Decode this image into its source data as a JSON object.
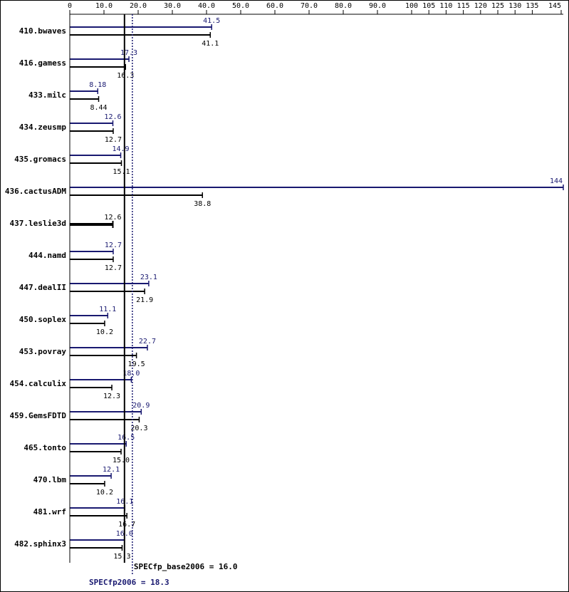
{
  "chart_data": {
    "type": "bar",
    "orientation": "horizontal",
    "x_ticks": [
      "0",
      "10.0",
      "20.0",
      "30.0",
      "40.0",
      "50.0",
      "60.0",
      "70.0",
      "80.0",
      "90.0",
      "100",
      "105",
      "110",
      "115",
      "120",
      "125",
      "130",
      "135",
      "145"
    ],
    "categories": [
      "410.bwaves",
      "416.gamess",
      "433.milc",
      "434.zeusmp",
      "435.gromacs",
      "436.cactusADM",
      "437.leslie3d",
      "444.namd",
      "447.dealII",
      "450.soplex",
      "453.povray",
      "454.calculix",
      "459.GemsFDTD",
      "465.tonto",
      "470.lbm",
      "481.wrf",
      "482.sphinx3"
    ],
    "series": [
      {
        "key": "peak",
        "color": "#191970",
        "values": [
          41.5,
          17.3,
          8.18,
          12.6,
          14.9,
          144,
          null,
          12.7,
          23.1,
          11.1,
          22.7,
          18.0,
          20.9,
          16.5,
          12.1,
          16.1,
          16.0
        ],
        "labels": [
          "41.5",
          "17.3",
          "8.18",
          "12.6",
          "14.9",
          "144",
          "",
          "12.7",
          "23.1",
          "11.1",
          "22.7",
          "18.0",
          "20.9",
          "16.5",
          "12.1",
          "16.1",
          "16.0"
        ]
      },
      {
        "key": "base",
        "color": "#000000",
        "values": [
          41.1,
          16.3,
          8.44,
          12.7,
          15.1,
          38.8,
          12.6,
          12.7,
          21.9,
          10.2,
          19.5,
          12.3,
          20.3,
          15.0,
          10.2,
          16.7,
          15.3
        ],
        "labels": [
          "41.1",
          "16.3",
          "8.44",
          "12.7",
          "15.1",
          "38.8",
          "12.6",
          "12.7",
          "21.9",
          "10.2",
          "19.5",
          "12.3",
          "20.3",
          "15.0",
          "10.2",
          "16.7",
          "15.3"
        ]
      }
    ],
    "summary": {
      "base_text": "SPECfp_base2006 = 16.0",
      "base_value": 16.0,
      "peak_text": "SPECfp2006 = 18.3",
      "peak_value": 18.3
    },
    "colors": {
      "peak": "#191970",
      "base": "#000000"
    }
  }
}
